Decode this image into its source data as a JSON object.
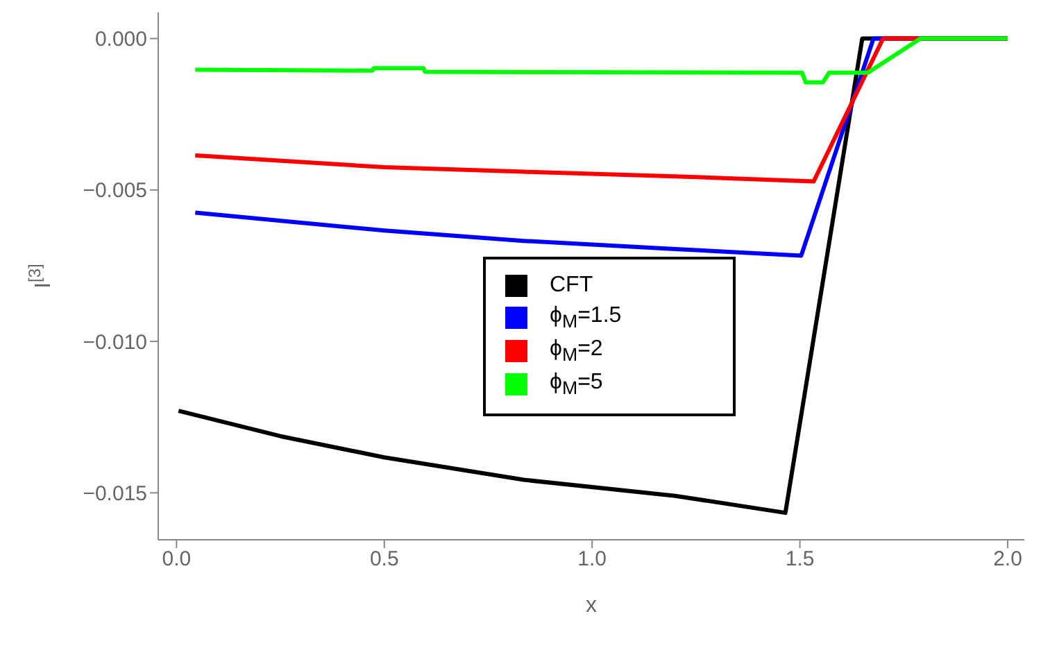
{
  "chart_data": {
    "type": "line",
    "xlabel": "x",
    "ylabel": "I$^{[3]}$",
    "xlim": [
      -0.044,
      2.04
    ],
    "ylim": [
      -0.01655,
      0.00086
    ],
    "xticks": [
      {
        "value": 0,
        "label": "0.0"
      },
      {
        "value": 0.5,
        "label": "0.5"
      },
      {
        "value": 1,
        "label": "1.0"
      },
      {
        "value": 1.5,
        "label": "1.5"
      },
      {
        "value": 2,
        "label": "2.0"
      }
    ],
    "yticks": [
      {
        "value": 0,
        "label": "0.000"
      },
      {
        "value": -0.005,
        "label": "−0.005"
      },
      {
        "value": -0.01,
        "label": "−0.010"
      },
      {
        "value": -0.015,
        "label": "−0.015"
      }
    ],
    "grid": false,
    "legend": "center",
    "marker": "none",
    "line_style": "solid",
    "series": [
      {
        "name": "CFT",
        "color": "#000000",
        "x": [
          0.005,
          0.25,
          0.5,
          0.835,
          1.2,
          1.465,
          1.65,
          2.0
        ],
        "values": [
          -0.01229,
          -0.01313,
          -0.01383,
          -0.01457,
          -0.0151,
          -0.01566,
          0,
          0
        ]
      },
      {
        "name": "ϕ$_{M}$=1.5",
        "color": "#0000ff",
        "x": [
          0.045,
          0.5,
          0.835,
          1.2,
          1.503,
          1.677,
          2.0
        ],
        "values": [
          -0.00575,
          -0.00634,
          -0.00668,
          -0.00695,
          -0.00717,
          0,
          0
        ]
      },
      {
        "name": "ϕ$_{M}$=2",
        "color": "#ff0000",
        "x": [
          0.045,
          0.5,
          0.835,
          1.2,
          1.533,
          1.7,
          2.0
        ],
        "values": [
          -0.00386,
          -0.00425,
          -0.0044,
          -0.00455,
          -0.00472,
          0,
          0
        ]
      },
      {
        "name": "ϕ$_{M}$=5",
        "color": "#00ff00",
        "x": [
          0.045,
          0.471,
          0.475,
          0.594,
          0.598,
          1.505,
          1.514,
          1.555,
          1.57,
          1.663,
          1.79,
          2.0
        ],
        "values": [
          -0.00103,
          -0.00106,
          -0.00098,
          -0.00098,
          -0.0011,
          -0.00113,
          -0.00145,
          -0.00145,
          -0.00113,
          -0.00113,
          0,
          0
        ]
      }
    ]
  }
}
